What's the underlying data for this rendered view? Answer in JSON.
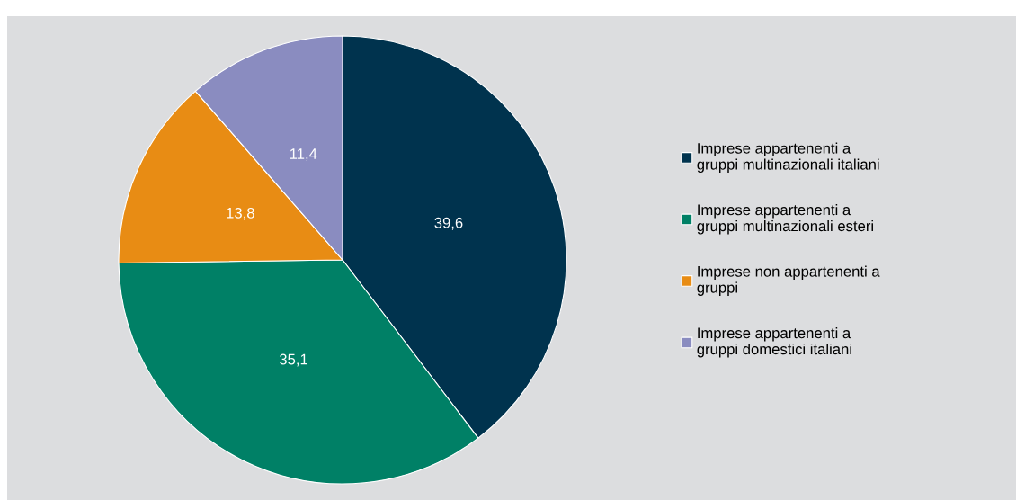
{
  "chart_data": {
    "type": "pie",
    "categories": [
      "Imprese appartenenti a\ngruppi multinazionali italiani",
      "Imprese appartenenti a\ngruppi multinazionali esteri",
      "Imprese non appartenenti a\ngruppi",
      "Imprese appartenenti a\ngruppi domestici italiani"
    ],
    "values": [
      39.6,
      35.1,
      13.8,
      11.4
    ],
    "value_labels": [
      "39,6",
      "35,1",
      "13,8",
      "11,4"
    ],
    "colors": [
      "#00334e",
      "#008066",
      "#e88c14",
      "#8a8cc0"
    ],
    "legend": "right"
  }
}
